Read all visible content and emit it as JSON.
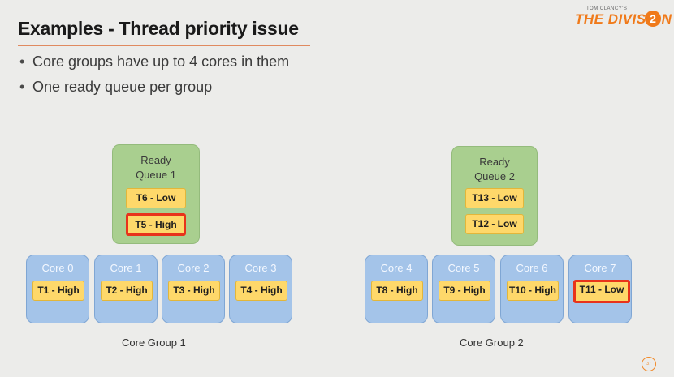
{
  "slide": {
    "title": "Examples - Thread priority issue",
    "bullets": [
      "Core groups have up to 4 cores in them",
      "One ready queue per group"
    ],
    "bullet_glyph": "•",
    "logo": {
      "small_text": "TOM CLANCY'S",
      "main_text": "THE DIVISION",
      "number": "2",
      "color": "#f07a1a"
    },
    "page_number": "37"
  },
  "colors": {
    "queue": "#a9cf8f",
    "core": "#a4c4e9",
    "task": "#fed86a",
    "highlight": "#e8331b"
  },
  "groups": [
    {
      "label": "Core Group 1",
      "queue": {
        "label_line1": "Ready",
        "label_line2": "Queue 1",
        "tasks": [
          {
            "label": "T6 - Low",
            "highlight": false
          },
          {
            "label": "T5 - High",
            "highlight": true
          }
        ]
      },
      "cores": [
        {
          "label": "Core 0",
          "task": {
            "label": "T1 - High",
            "highlight": false
          }
        },
        {
          "label": "Core 1",
          "task": {
            "label": "T2 - High",
            "highlight": false
          }
        },
        {
          "label": "Core 2",
          "task": {
            "label": "T3 - High",
            "highlight": false
          }
        },
        {
          "label": "Core 3",
          "task": {
            "label": "T4 - High",
            "highlight": false
          }
        }
      ]
    },
    {
      "label": "Core Group 2",
      "queue": {
        "label_line1": "Ready",
        "label_line2": "Queue 2",
        "tasks": [
          {
            "label": "T13 - Low",
            "highlight": false
          },
          {
            "label": "T12 - Low",
            "highlight": false
          }
        ]
      },
      "cores": [
        {
          "label": "Core 4",
          "task": {
            "label": "T8 - High",
            "highlight": false
          }
        },
        {
          "label": "Core 5",
          "task": {
            "label": "T9 - High",
            "highlight": false
          }
        },
        {
          "label": "Core 6",
          "task": {
            "label": "T10 - High",
            "highlight": false
          }
        },
        {
          "label": "Core 7",
          "task": {
            "label": "T11 - Low",
            "highlight": true
          }
        }
      ]
    }
  ]
}
